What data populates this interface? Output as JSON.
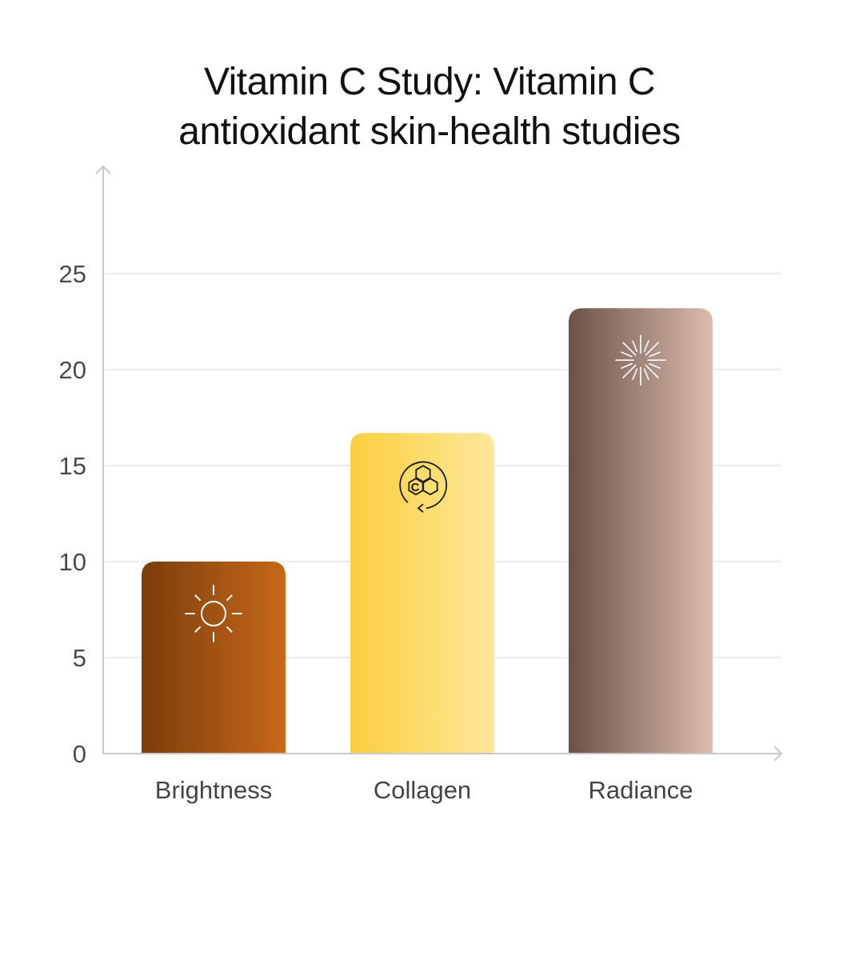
{
  "chart_data": {
    "type": "bar",
    "title_lines": [
      "Vitamin C Study: Vitamin C",
      "antioxidant skin-health studies"
    ],
    "categories": [
      "Brightness",
      "Collagen",
      "Radiance"
    ],
    "values": [
      10,
      16.7,
      23.2
    ],
    "icons": [
      "sun-icon",
      "collagen-molecule-icon",
      "radiance-burst-icon"
    ],
    "ylim": [
      0,
      30
    ],
    "yticks": [
      "0",
      "5",
      "10",
      "15",
      "20",
      "25"
    ],
    "grid": true,
    "xlabel": "",
    "ylabel": "",
    "colors": {
      "Brightness": [
        "#7a3d0a",
        "#c8681a"
      ],
      "Collagen": [
        "#fbcf3e",
        "#fde89a"
      ],
      "Radiance": [
        "#6b5146",
        "#dcbcae"
      ]
    }
  }
}
